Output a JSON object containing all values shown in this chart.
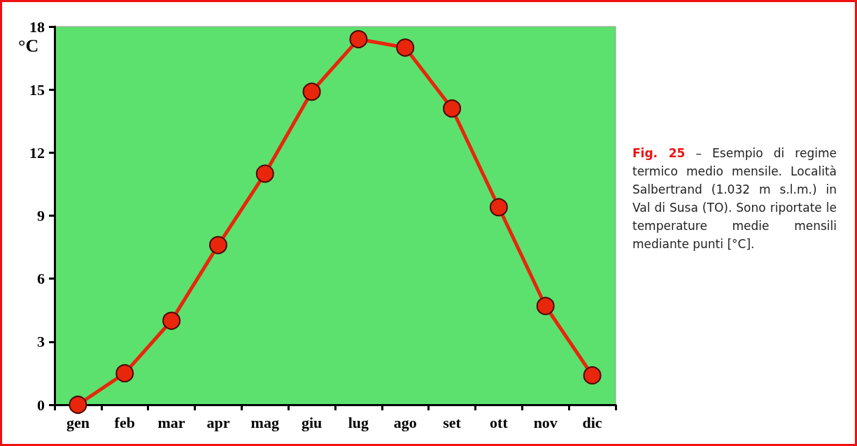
{
  "chart_data": {
    "type": "line",
    "ylabel": "°C",
    "categories": [
      "gen",
      "feb",
      "mar",
      "apr",
      "mag",
      "giu",
      "lug",
      "ago",
      "set",
      "ott",
      "nov",
      "dic"
    ],
    "series": [
      {
        "color": "#e8260c",
        "values": [
          0,
          1.5,
          4.0,
          7.6,
          11.0,
          14.9,
          17.4,
          17.0,
          14.1,
          9.4,
          4.7,
          1.4
        ]
      }
    ],
    "ylim": [
      0,
      18
    ],
    "yticks": [
      0,
      3,
      6,
      9,
      12,
      15,
      18
    ],
    "grid": false,
    "marker": "circle",
    "line_style": "solid",
    "annotations": [
      "Fig. 25",
      "– Esempio di regime termico medio mensile. Località Salbertrand (1.032 m s.l.m.) in Val di Susa (TO). Sono riportate le temperature medie mensili mediante punti [°C]."
    ]
  }
}
